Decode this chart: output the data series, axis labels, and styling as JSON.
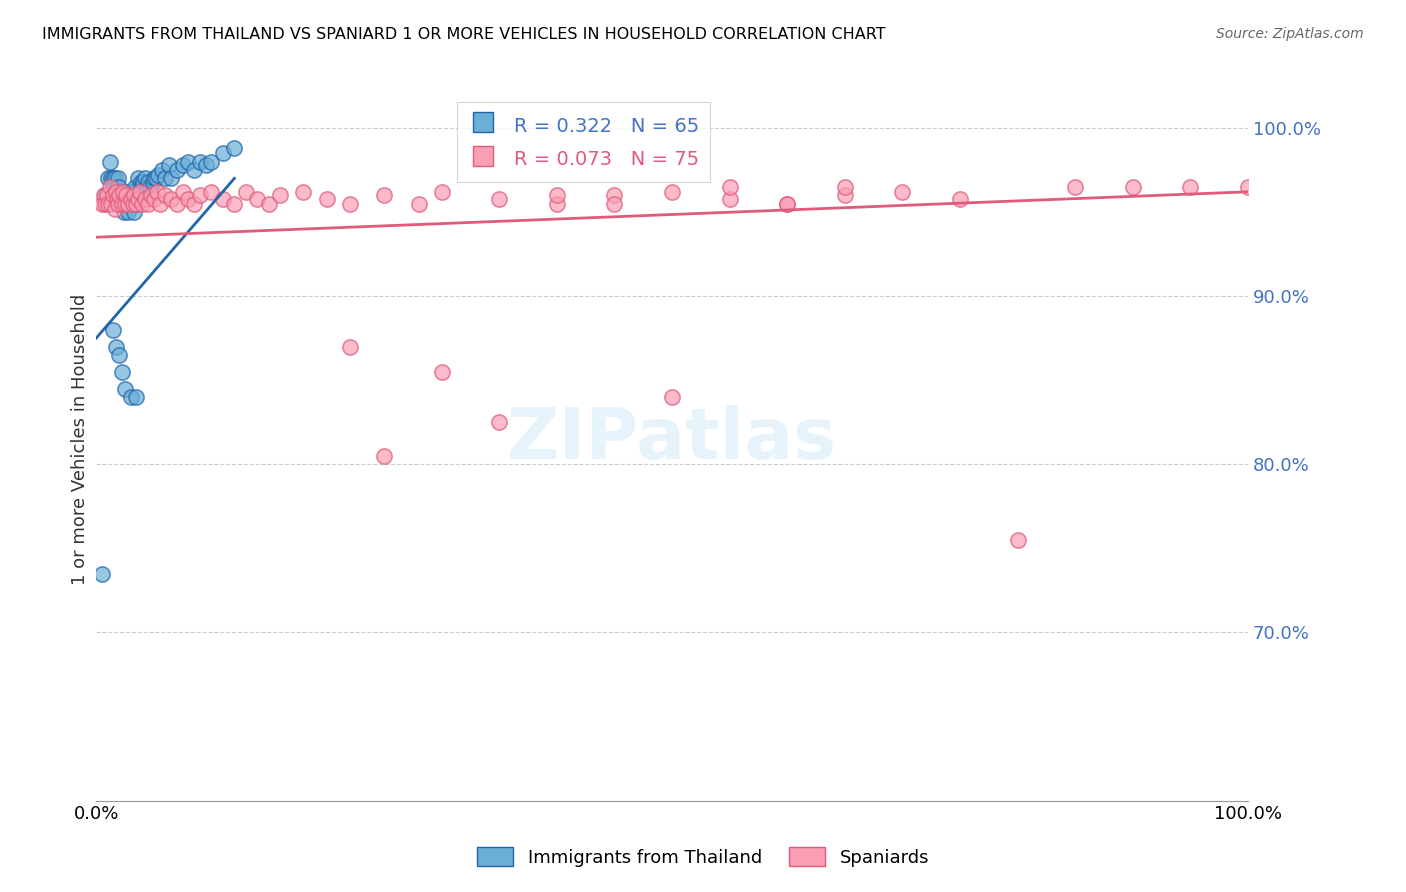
{
  "title": "IMMIGRANTS FROM THAILAND VS SPANIARD 1 OR MORE VEHICLES IN HOUSEHOLD CORRELATION CHART",
  "source": "Source: ZipAtlas.com",
  "ylabel": "1 or more Vehicles in Household",
  "ytick_values": [
    1.0,
    0.9,
    0.8,
    0.7
  ],
  "xmin": 0.0,
  "xmax": 1.0,
  "ymin": 0.6,
  "ymax": 1.03,
  "blue_R": 0.322,
  "blue_N": 65,
  "pink_R": 0.073,
  "pink_N": 75,
  "blue_color": "#6baed6",
  "pink_color": "#fa9fb5",
  "blue_line_color": "#2166ac",
  "pink_line_color": "#e05a7a",
  "blue_text_color": "#4472c4",
  "pink_text_color": "#e05a7a",
  "right_axis_color": "#4472c4",
  "legend_label_blue": "Immigrants from Thailand",
  "legend_label_pink": "Spaniards",
  "watermark": "ZIPatlas",
  "blue_trend_x0": 0.0,
  "blue_trend_x1": 0.12,
  "blue_trend_y0": 0.875,
  "blue_trend_y1": 0.97,
  "pink_trend_x0": 0.0,
  "pink_trend_x1": 1.0,
  "pink_trend_y0": 0.935,
  "pink_trend_y1": 0.962,
  "blue_scatter_x": [
    0.005,
    0.008,
    0.01,
    0.012,
    0.013,
    0.015,
    0.015,
    0.016,
    0.018,
    0.018,
    0.019,
    0.02,
    0.02,
    0.021,
    0.022,
    0.023,
    0.024,
    0.025,
    0.025,
    0.026,
    0.027,
    0.028,
    0.029,
    0.03,
    0.031,
    0.032,
    0.033,
    0.033,
    0.034,
    0.035,
    0.036,
    0.037,
    0.038,
    0.039,
    0.04,
    0.041,
    0.042,
    0.043,
    0.044,
    0.045,
    0.047,
    0.049,
    0.05,
    0.052,
    0.054,
    0.057,
    0.06,
    0.063,
    0.065,
    0.07,
    0.075,
    0.08,
    0.085,
    0.09,
    0.095,
    0.1,
    0.11,
    0.12,
    0.015,
    0.017,
    0.02,
    0.022,
    0.025,
    0.03,
    0.035
  ],
  "blue_scatter_y": [
    0.735,
    0.96,
    0.97,
    0.98,
    0.97,
    0.965,
    0.97,
    0.97,
    0.96,
    0.965,
    0.97,
    0.96,
    0.965,
    0.955,
    0.96,
    0.955,
    0.95,
    0.96,
    0.958,
    0.962,
    0.955,
    0.95,
    0.958,
    0.955,
    0.962,
    0.958,
    0.95,
    0.962,
    0.965,
    0.955,
    0.97,
    0.96,
    0.957,
    0.968,
    0.965,
    0.968,
    0.97,
    0.962,
    0.965,
    0.968,
    0.965,
    0.968,
    0.97,
    0.97,
    0.972,
    0.975,
    0.97,
    0.978,
    0.97,
    0.975,
    0.978,
    0.98,
    0.975,
    0.98,
    0.978,
    0.98,
    0.985,
    0.988,
    0.88,
    0.87,
    0.865,
    0.855,
    0.845,
    0.84,
    0.84
  ],
  "pink_scatter_x": [
    0.005,
    0.007,
    0.008,
    0.009,
    0.01,
    0.012,
    0.013,
    0.015,
    0.016,
    0.017,
    0.018,
    0.019,
    0.02,
    0.022,
    0.023,
    0.025,
    0.026,
    0.028,
    0.03,
    0.032,
    0.033,
    0.035,
    0.036,
    0.038,
    0.04,
    0.042,
    0.045,
    0.048,
    0.05,
    0.053,
    0.055,
    0.06,
    0.065,
    0.07,
    0.075,
    0.08,
    0.085,
    0.09,
    0.1,
    0.11,
    0.12,
    0.13,
    0.14,
    0.15,
    0.16,
    0.18,
    0.2,
    0.22,
    0.25,
    0.28,
    0.3,
    0.35,
    0.4,
    0.45,
    0.5,
    0.55,
    0.6,
    0.65,
    0.7,
    0.75,
    0.8,
    0.85,
    0.9,
    0.95,
    1.0,
    0.3,
    0.35,
    0.22,
    0.25,
    0.4,
    0.45,
    0.5,
    0.55,
    0.6,
    0.65
  ],
  "pink_scatter_y": [
    0.955,
    0.96,
    0.955,
    0.96,
    0.955,
    0.965,
    0.955,
    0.96,
    0.952,
    0.962,
    0.958,
    0.955,
    0.96,
    0.955,
    0.962,
    0.955,
    0.96,
    0.955,
    0.958,
    0.955,
    0.96,
    0.955,
    0.958,
    0.962,
    0.955,
    0.958,
    0.955,
    0.96,
    0.958,
    0.962,
    0.955,
    0.96,
    0.958,
    0.955,
    0.962,
    0.958,
    0.955,
    0.96,
    0.962,
    0.958,
    0.955,
    0.962,
    0.958,
    0.955,
    0.96,
    0.962,
    0.958,
    0.955,
    0.96,
    0.955,
    0.962,
    0.958,
    0.955,
    0.96,
    0.962,
    0.958,
    0.955,
    0.96,
    0.962,
    0.958,
    0.755,
    0.965,
    0.965,
    0.965,
    0.965,
    0.855,
    0.825,
    0.87,
    0.805,
    0.96,
    0.955,
    0.84,
    0.965,
    0.955,
    0.965
  ]
}
